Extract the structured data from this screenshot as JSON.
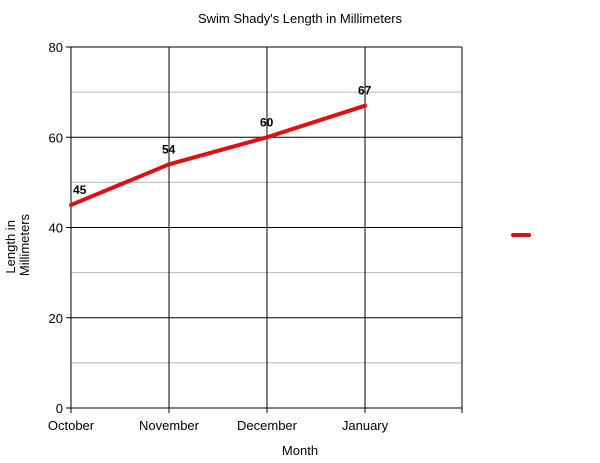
{
  "chart_data": {
    "type": "line",
    "title": "Swim Shady's Length in Millimeters",
    "xlabel": "Month",
    "ylabel": "Length in Millimeters",
    "ylabel_lines": [
      "Length in",
      "Millimeters"
    ],
    "categories": [
      "October",
      "November",
      "December",
      "January"
    ],
    "series": [
      {
        "values": [
          45,
          54,
          60,
          67
        ],
        "color": "#e01010"
      }
    ],
    "ylim": [
      0,
      80
    ],
    "yticks": [
      0,
      20,
      40,
      60,
      80
    ],
    "grid": "on",
    "legend": "right"
  }
}
